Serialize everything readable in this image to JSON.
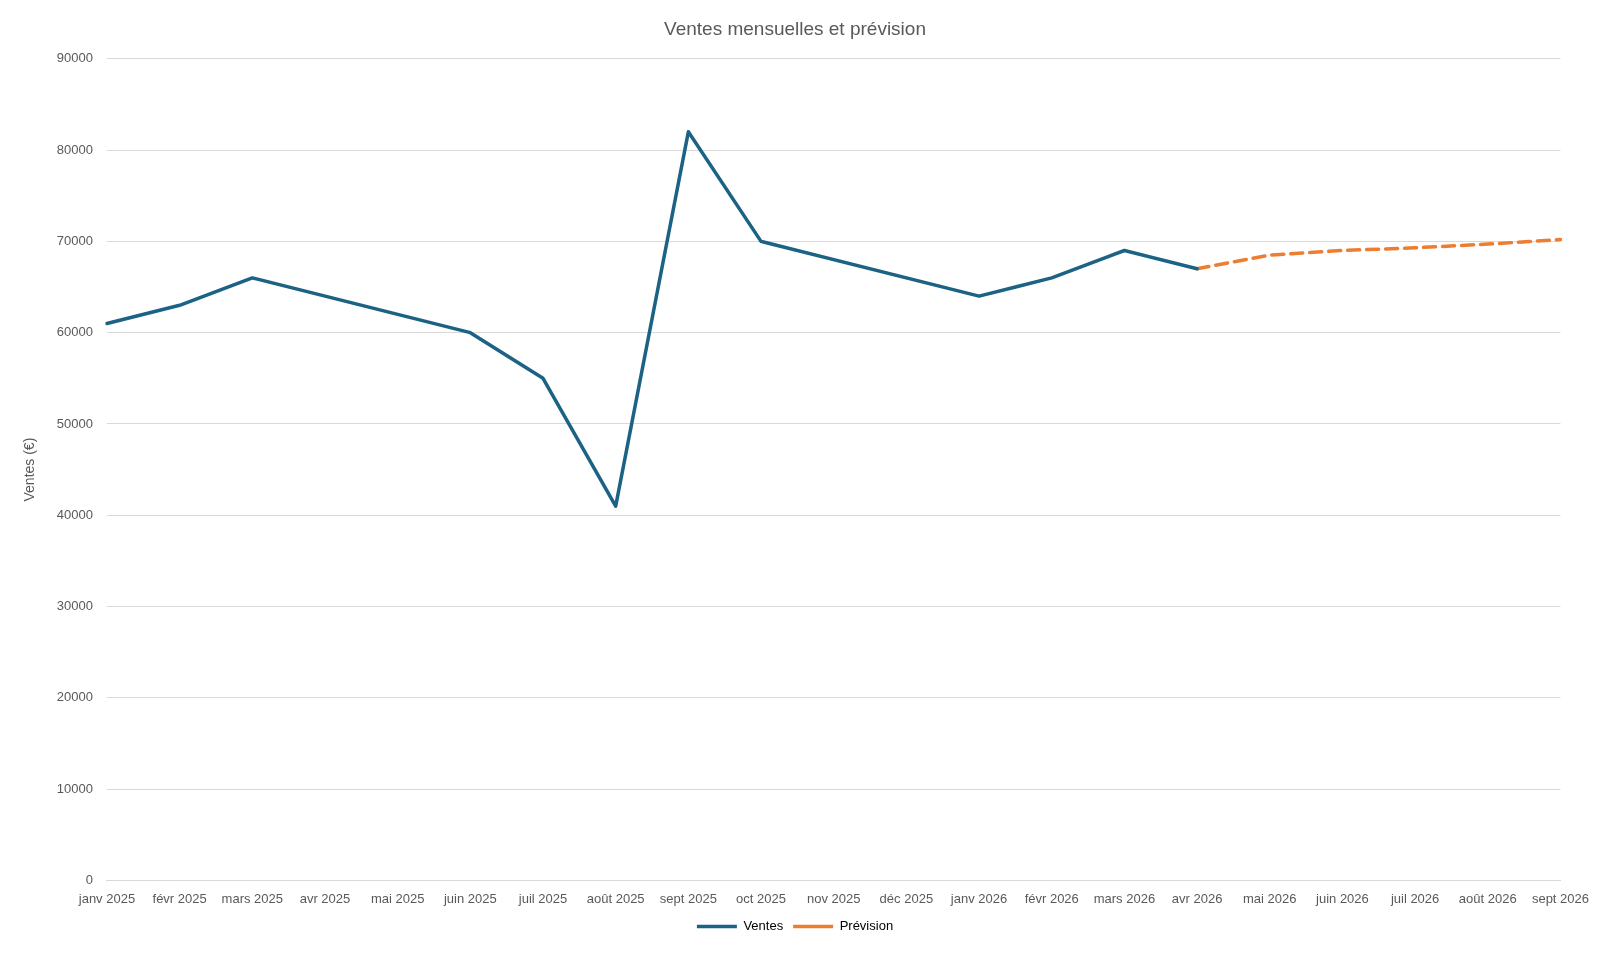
{
  "chart_data": {
    "type": "line",
    "title": "Ventes mensuelles et prévision",
    "ylabel": "Ventes (€)",
    "categories": [
      "janv 2025",
      "févr 2025",
      "mars 2025",
      "avr 2025",
      "mai 2025",
      "juin 2025",
      "juil 2025",
      "août 2025",
      "sept 2025",
      "oct 2025",
      "nov 2025",
      "déc 2025",
      "janv 2026",
      "févr 2026",
      "mars 2026",
      "avr 2026",
      "mai 2026",
      "juin 2026",
      "juil 2026",
      "août 2026",
      "sept 2026"
    ],
    "series": [
      {
        "name": "Ventes",
        "color": "#1b6285",
        "line_style": "solid",
        "values": [
          61000,
          63000,
          66000,
          null,
          null,
          60000,
          55000,
          41000,
          82000,
          70000,
          null,
          null,
          64000,
          66000,
          69000,
          67000,
          null,
          null,
          null,
          null,
          null
        ]
      },
      {
        "name": "Prévision",
        "color": "#ed7d31",
        "line_style": "dashed",
        "values": [
          null,
          null,
          null,
          null,
          null,
          null,
          null,
          null,
          null,
          null,
          null,
          null,
          null,
          null,
          null,
          67000,
          68500,
          69000,
          69300,
          69700,
          70200
        ]
      }
    ],
    "ylim": [
      0,
      90000
    ],
    "yticks": [
      0,
      10000,
      20000,
      30000,
      40000,
      50000,
      60000,
      70000,
      80000,
      90000
    ],
    "grid": "y",
    "legend": "bottom",
    "marker": "none"
  }
}
